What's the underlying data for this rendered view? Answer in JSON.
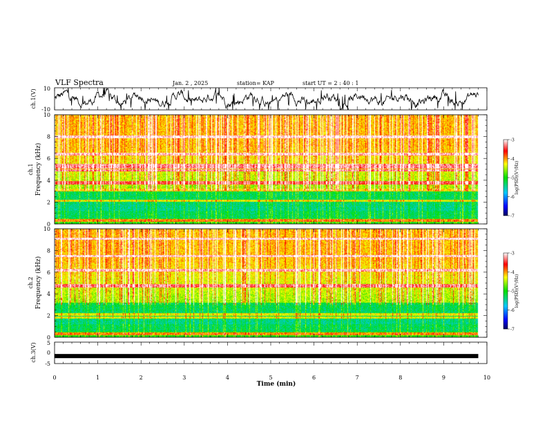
{
  "header": {
    "title": "VLF Spectra",
    "date": "Jan. 2 , 2025",
    "station": "station= KAP",
    "start": "start UT = 2 : 40 : 1"
  },
  "colors": {
    "spec_low": "#000080",
    "spec_mid": "#22e000",
    "spec_high": "#ff0000",
    "trace": "#000000"
  },
  "chart_data": [
    {
      "id": "ch1v",
      "type": "line",
      "ylabel": "ch.1(V)",
      "ylim": [
        -10,
        10
      ],
      "yticks": [
        "10",
        "-10"
      ],
      "xlim": [
        0,
        10
      ],
      "description_values": "noisy waveform oscillating roughly between -8 and 9 V, centered near 0"
    },
    {
      "id": "ch1",
      "type": "heatmap",
      "ylabel_top": "ch.1",
      "ylabel": "Frequency (kHz)",
      "ylim": [
        0,
        10
      ],
      "yticks": [
        "0",
        "2",
        "4",
        "6",
        "8",
        "10"
      ],
      "xlim": [
        0,
        10
      ],
      "data_xmax": 9.8,
      "colorbar": {
        "label": "log(PSD)(V²/Hz)",
        "range": [
          -7,
          -3
        ],
        "ticks": [
          "-3",
          "-4",
          "-5",
          "-6",
          "-7"
        ]
      },
      "bands_khz": [
        0.3,
        2.1,
        3.1,
        3.7,
        3.8,
        4.9,
        5.2,
        5.4,
        6.4,
        8.0
      ]
    },
    {
      "id": "ch2",
      "type": "heatmap",
      "ylabel_top": "ch.2",
      "ylabel": "Frequency (kHz)",
      "ylim": [
        0,
        10
      ],
      "yticks": [
        "0",
        "2",
        "4",
        "6",
        "8",
        "10"
      ],
      "xlim": [
        0,
        10
      ],
      "data_xmax": 9.8,
      "colorbar": {
        "label": "log(PSD)(V²/Hz)",
        "range": [
          -7,
          -3
        ],
        "ticks": [
          "-3",
          "-4",
          "-5",
          "-6",
          "-7"
        ]
      },
      "bands_khz": [
        0.3,
        1.8,
        2.1,
        4.7,
        4.8,
        6.2,
        7.5,
        9.1
      ]
    },
    {
      "id": "ch3v",
      "type": "line",
      "ylabel": "ch.3(V)",
      "ylim": [
        -5,
        5
      ],
      "yticks": [
        "5",
        "0",
        "-5"
      ],
      "xlim": [
        0,
        10
      ],
      "xlabel": "Time (min)",
      "xticks": [
        "0",
        "1",
        "2",
        "3",
        "4",
        "5",
        "6",
        "7",
        "8",
        "9",
        "10"
      ],
      "constant_value": -1.5
    }
  ]
}
